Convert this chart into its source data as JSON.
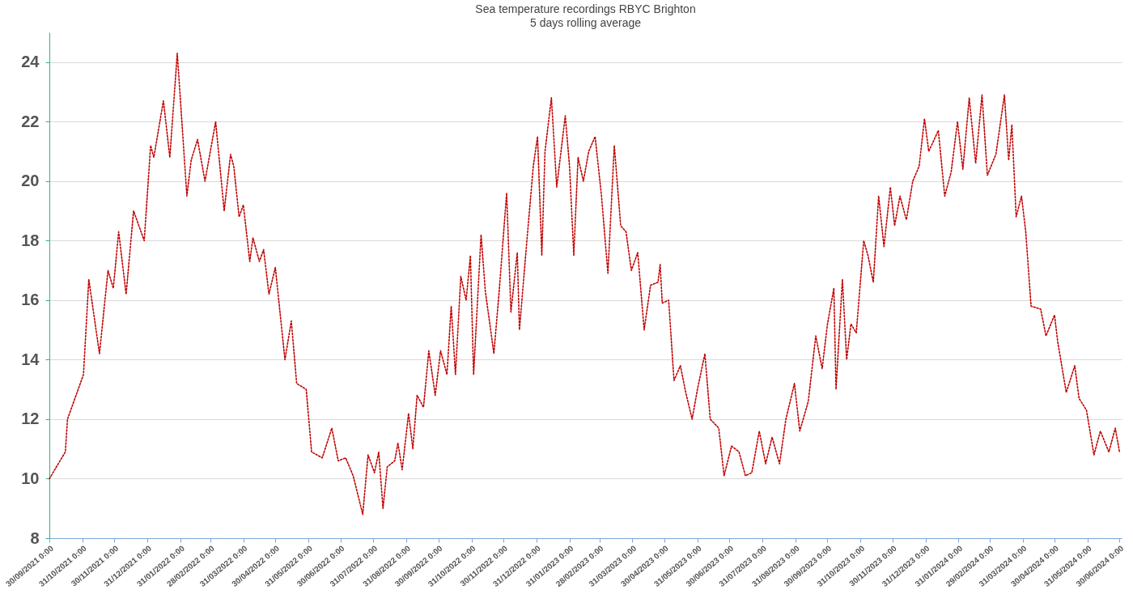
{
  "chart_data": {
    "type": "line",
    "title": "Sea temperature recordings RBYC Brighton",
    "subtitle": "5 days rolling average",
    "x": [
      "2021-09-30",
      "2021-10-15",
      "2021-10-17",
      "2021-11-01",
      "2021-11-06",
      "2021-11-16",
      "2021-11-24",
      "2021-11-29",
      "2021-12-04",
      "2021-12-11",
      "2021-12-18",
      "2021-12-28",
      "2022-01-03",
      "2022-01-06",
      "2022-01-15",
      "2022-01-21",
      "2022-01-28",
      "2022-02-06",
      "2022-02-10",
      "2022-02-16",
      "2022-02-23",
      "2022-03-05",
      "2022-03-13",
      "2022-03-19",
      "2022-03-22",
      "2022-03-27",
      "2022-03-31",
      "2022-04-06",
      "2022-04-09",
      "2022-04-15",
      "2022-04-19",
      "2022-04-24",
      "2022-04-30",
      "2022-05-09",
      "2022-05-15",
      "2022-05-20",
      "2022-05-29",
      "2022-06-03",
      "2022-06-13",
      "2022-06-22",
      "2022-06-28",
      "2022-07-05",
      "2022-07-12",
      "2022-07-21",
      "2022-07-26",
      "2022-08-01",
      "2022-08-05",
      "2022-08-09",
      "2022-08-13",
      "2022-08-20",
      "2022-08-23",
      "2022-08-27",
      "2022-09-02",
      "2022-09-06",
      "2022-09-10",
      "2022-09-16",
      "2022-09-21",
      "2022-09-27",
      "2022-10-02",
      "2022-10-08",
      "2022-10-12",
      "2022-10-16",
      "2022-10-21",
      "2022-10-26",
      "2022-10-30",
      "2022-11-02",
      "2022-11-09",
      "2022-11-13",
      "2022-11-18",
      "2022-11-21",
      "2022-11-26",
      "2022-12-03",
      "2022-12-07",
      "2022-12-13",
      "2022-12-15",
      "2022-12-22",
      "2022-12-28",
      "2023-01-01",
      "2023-01-05",
      "2023-01-08",
      "2023-01-14",
      "2023-01-19",
      "2023-01-27",
      "2023-01-31",
      "2023-02-04",
      "2023-02-08",
      "2023-02-13",
      "2023-02-18",
      "2023-02-24",
      "2023-03-02",
      "2023-03-08",
      "2023-03-14",
      "2023-03-20",
      "2023-03-25",
      "2023-03-30",
      "2023-04-05",
      "2023-04-11",
      "2023-04-17",
      "2023-04-24",
      "2023-04-26",
      "2023-04-28",
      "2023-05-04",
      "2023-05-09",
      "2023-05-15",
      "2023-05-20",
      "2023-05-26",
      "2023-05-31",
      "2023-06-07",
      "2023-06-12",
      "2023-06-20",
      "2023-06-25",
      "2023-07-02",
      "2023-07-09",
      "2023-07-15",
      "2023-07-21",
      "2023-07-28",
      "2023-08-03",
      "2023-08-09",
      "2023-08-16",
      "2023-08-22",
      "2023-08-30",
      "2023-09-04",
      "2023-09-12",
      "2023-09-19",
      "2023-09-25",
      "2023-09-30",
      "2023-10-06",
      "2023-10-08",
      "2023-10-14",
      "2023-10-18",
      "2023-10-22",
      "2023-10-27",
      "2023-11-03",
      "2023-11-07",
      "2023-11-12",
      "2023-11-17",
      "2023-11-22",
      "2023-11-28",
      "2023-12-02",
      "2023-12-07",
      "2023-12-13",
      "2023-12-19",
      "2023-12-25",
      "2023-12-30",
      "2024-01-03",
      "2024-01-12",
      "2024-01-18",
      "2024-01-24",
      "2024-01-30",
      "2024-02-04",
      "2024-02-10",
      "2024-02-16",
      "2024-02-22",
      "2024-02-27",
      "2024-03-06",
      "2024-03-14",
      "2024-03-18",
      "2024-03-21",
      "2024-03-25",
      "2024-03-30",
      "2024-04-03",
      "2024-04-08",
      "2024-04-17",
      "2024-04-22",
      "2024-04-30",
      "2024-05-03",
      "2024-05-11",
      "2024-05-19",
      "2024-05-23",
      "2024-05-30",
      "2024-06-06",
      "2024-06-12",
      "2024-06-20",
      "2024-06-26",
      "2024-06-30"
    ],
    "series": [
      {
        "color": "#c00000",
        "values": [
          10.0,
          10.9,
          12.0,
          13.5,
          16.7,
          14.2,
          17.0,
          16.4,
          18.3,
          16.2,
          19.0,
          18.0,
          21.2,
          20.8,
          22.7,
          20.8,
          24.3,
          19.5,
          20.7,
          21.4,
          20.0,
          22.0,
          19.0,
          20.9,
          20.5,
          18.8,
          19.2,
          17.3,
          18.1,
          17.3,
          17.7,
          16.2,
          17.1,
          14.0,
          15.3,
          13.2,
          13.0,
          10.9,
          10.7,
          11.7,
          10.6,
          10.7,
          10.1,
          8.8,
          10.8,
          10.2,
          10.9,
          9.0,
          10.4,
          10.6,
          11.2,
          10.3,
          12.2,
          11.0,
          12.8,
          12.4,
          14.3,
          12.8,
          14.3,
          13.5,
          15.8,
          13.5,
          16.8,
          16.0,
          17.5,
          13.5,
          18.2,
          16.3,
          15.0,
          14.2,
          16.3,
          19.6,
          15.6,
          17.6,
          15.0,
          18.0,
          20.5,
          21.5,
          17.5,
          21.0,
          22.8,
          19.8,
          22.2,
          20.5,
          17.5,
          20.8,
          20.0,
          21.0,
          21.5,
          19.5,
          16.9,
          21.2,
          18.5,
          18.3,
          17.0,
          17.6,
          15.0,
          16.5,
          16.6,
          17.2,
          15.9,
          16.0,
          13.3,
          13.8,
          12.9,
          12.0,
          13.0,
          14.2,
          12.0,
          11.7,
          10.1,
          11.1,
          10.9,
          10.1,
          10.2,
          11.6,
          10.5,
          11.4,
          10.5,
          12.0,
          13.2,
          11.6,
          12.6,
          14.8,
          13.7,
          15.2,
          16.4,
          13.0,
          16.7,
          14.0,
          15.2,
          14.9,
          18.0,
          17.5,
          16.6,
          19.5,
          17.8,
          19.8,
          18.5,
          19.5,
          18.7,
          20.0,
          20.5,
          22.1,
          21.0,
          21.7,
          19.5,
          20.3,
          22.0,
          20.4,
          22.8,
          20.6,
          22.9,
          20.2,
          20.9,
          22.9,
          20.7,
          21.9,
          18.8,
          19.5,
          18.3,
          15.8,
          15.7,
          14.8,
          15.5,
          14.6,
          12.9,
          13.8,
          12.7,
          12.3,
          10.8,
          11.6,
          10.9,
          11.7,
          10.9
        ]
      }
    ],
    "xlim": [
      "2021-09-30",
      "2024-07-02"
    ],
    "xticks": [
      {
        "value": "2021-09-30",
        "label": "30/09/2021 0:00"
      },
      {
        "value": "2021-10-31",
        "label": "31/10/2021 0:00"
      },
      {
        "value": "2021-11-30",
        "label": "30/11/2021 0:00"
      },
      {
        "value": "2021-12-31",
        "label": "31/12/2021 0:00"
      },
      {
        "value": "2022-01-31",
        "label": "31/01/2022 0:00"
      },
      {
        "value": "2022-02-28",
        "label": "28/02/2022 0:00"
      },
      {
        "value": "2022-03-31",
        "label": "31/03/2022 0:00"
      },
      {
        "value": "2022-04-30",
        "label": "30/04/2022 0:00"
      },
      {
        "value": "2022-05-31",
        "label": "31/05/2022 0:00"
      },
      {
        "value": "2022-06-30",
        "label": "30/06/2022 0:00"
      },
      {
        "value": "2022-07-31",
        "label": "31/07/2022 0:00"
      },
      {
        "value": "2022-08-31",
        "label": "31/08/2022 0:00"
      },
      {
        "value": "2022-09-30",
        "label": "30/09/2022 0:00"
      },
      {
        "value": "2022-10-31",
        "label": "31/10/2022 0:00"
      },
      {
        "value": "2022-11-30",
        "label": "30/11/2022 0:00"
      },
      {
        "value": "2022-12-31",
        "label": "31/12/2022 0:00"
      },
      {
        "value": "2023-01-31",
        "label": "31/01/2023 0:00"
      },
      {
        "value": "2023-02-28",
        "label": "28/02/2023 0:00"
      },
      {
        "value": "2023-03-31",
        "label": "31/03/2023 0:00"
      },
      {
        "value": "2023-04-30",
        "label": "30/04/2023 0:00"
      },
      {
        "value": "2023-05-31",
        "label": "31/05/2023 0:00"
      },
      {
        "value": "2023-06-30",
        "label": "30/06/2023 0:00"
      },
      {
        "value": "2023-07-31",
        "label": "31/07/2023 0:00"
      },
      {
        "value": "2023-08-31",
        "label": "31/08/2023 0:00"
      },
      {
        "value": "2023-09-30",
        "label": "30/09/2023 0:00"
      },
      {
        "value": "2023-10-31",
        "label": "31/10/2023 0:00"
      },
      {
        "value": "2023-11-30",
        "label": "30/11/2023 0:00"
      },
      {
        "value": "2023-12-31",
        "label": "31/12/2023 0:00"
      },
      {
        "value": "2024-01-31",
        "label": "31/01/2024 0:00"
      },
      {
        "value": "2024-02-29",
        "label": "29/02/2024 0:00"
      },
      {
        "value": "2024-03-31",
        "label": "31/03/2024 0:00"
      },
      {
        "value": "2024-04-30",
        "label": "30/04/2024 0:00"
      },
      {
        "value": "2024-05-31",
        "label": "31/05/2024 0:00"
      },
      {
        "value": "2024-06-30",
        "label": "30/06/2024 0:00"
      }
    ],
    "ylim": [
      8,
      25
    ],
    "yticks": [
      8,
      10,
      12,
      14,
      16,
      18,
      20,
      22,
      24
    ],
    "grid": "y",
    "line_style": "dotted",
    "marker": "none"
  }
}
